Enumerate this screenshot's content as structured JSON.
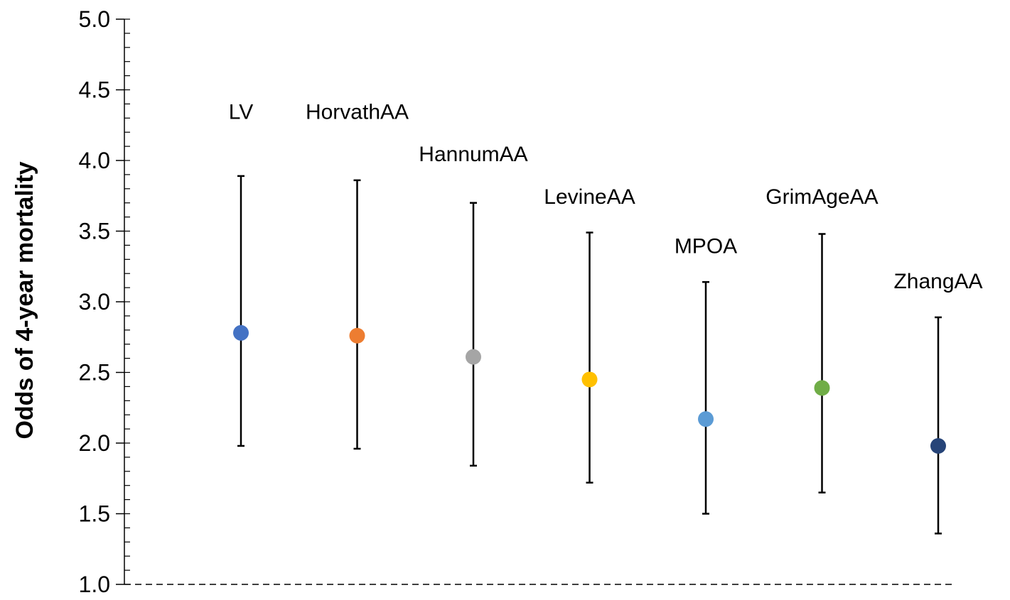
{
  "chart_data": {
    "type": "scatter",
    "title": "",
    "xlabel": "",
    "ylabel": "Odds of 4-year mortality",
    "ylim": [
      1.0,
      5.0
    ],
    "y_ticks": [
      "1.0",
      "1.5",
      "2.0",
      "2.5",
      "3.0",
      "3.5",
      "4.0",
      "4.5",
      "5.0"
    ],
    "y_tick_values": [
      1.0,
      1.5,
      2.0,
      2.5,
      3.0,
      3.5,
      4.0,
      4.5,
      5.0
    ],
    "y_minor_step": 0.1,
    "reference_line": 1.0,
    "grid": false,
    "points": [
      {
        "label": "LV",
        "value": 2.78,
        "ci_low": 1.98,
        "ci_high": 3.89,
        "label_y": 4.35,
        "color": "#4472C4"
      },
      {
        "label": "HorvathAA",
        "value": 2.76,
        "ci_low": 1.96,
        "ci_high": 3.86,
        "label_y": 4.35,
        "color": "#ED7D31"
      },
      {
        "label": "HannumAA",
        "value": 2.61,
        "ci_low": 1.84,
        "ci_high": 3.7,
        "label_y": 4.05,
        "color": "#A5A5A5"
      },
      {
        "label": "LevineAA",
        "value": 2.45,
        "ci_low": 1.72,
        "ci_high": 3.49,
        "label_y": 3.75,
        "color": "#FFC000"
      },
      {
        "label": "MPOA",
        "value": 2.17,
        "ci_low": 1.5,
        "ci_high": 3.14,
        "label_y": 3.4,
        "color": "#5B9BD5"
      },
      {
        "label": "GrimAgeAA",
        "value": 2.39,
        "ci_low": 1.65,
        "ci_high": 3.48,
        "label_y": 3.75,
        "color": "#70AD47"
      },
      {
        "label": "ZhangAA",
        "value": 1.98,
        "ci_low": 1.36,
        "ci_high": 2.89,
        "label_y": 3.15,
        "color": "#264478"
      }
    ]
  }
}
